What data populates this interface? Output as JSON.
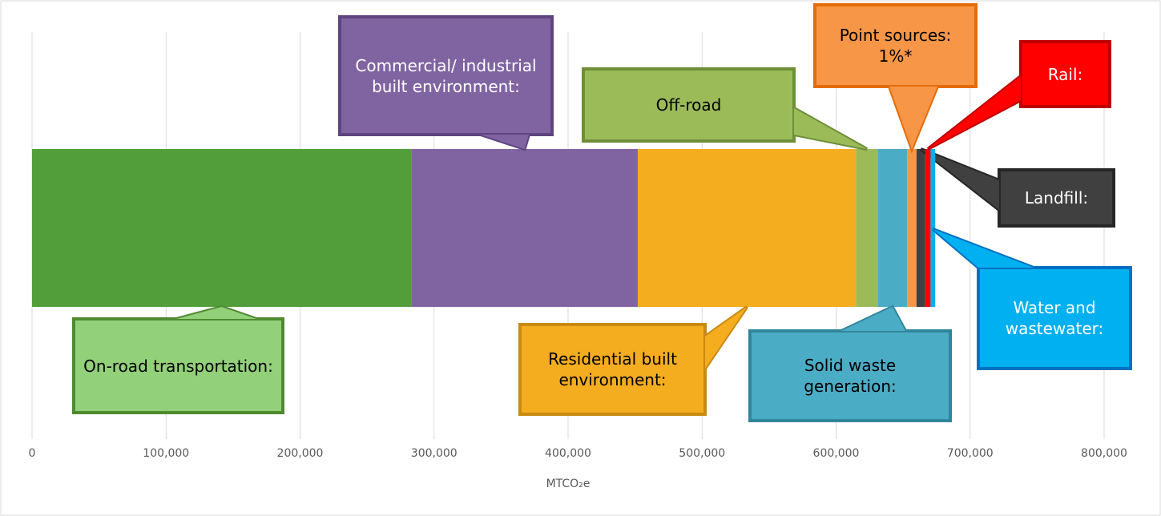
{
  "chart_data": {
    "type": "stacked-bar",
    "orientation": "horizontal",
    "x_label": "MTCO₂e",
    "categories": [
      null
    ],
    "series": [
      {
        "name": "On-road transportation:",
        "color": "#529e3a",
        "values": [
          283000
        ]
      },
      {
        "name": "Commercial/ industrial built environment:",
        "color": "#8064a2",
        "values": [
          169000
        ]
      },
      {
        "name": "Residential built environment:",
        "color": "#f5ad20",
        "values": [
          163000
        ]
      },
      {
        "name": "Off-road",
        "color": "#9bbb59",
        "values": [
          16000
        ]
      },
      {
        "name": "Solid waste generation:",
        "color": "#4bacc6",
        "values": [
          22000
        ]
      },
      {
        "name": "Point sources: 1%*",
        "color": "#f79646",
        "values": [
          7000
        ]
      },
      {
        "name": "Landfill:",
        "color": "#404040",
        "values": [
          6500
        ]
      },
      {
        "name": "Rail:",
        "color": "#ff0000",
        "values": [
          4000
        ]
      },
      {
        "name": "Water and wastewater:",
        "color": "#00b0f0",
        "values": [
          3500
        ]
      }
    ],
    "xlim": [
      0,
      800000
    ],
    "xticks": [
      0,
      {
        "value": 100000,
        "label": "100,000"
      },
      {
        "value": 200000,
        "label": "200,000"
      },
      {
        "value": 300000,
        "label": "300,000"
      },
      {
        "value": 400000,
        "label": "400,000"
      },
      {
        "value": 500000,
        "label": "500,000"
      },
      {
        "value": 600000,
        "label": "600,000"
      },
      {
        "value": 700000,
        "label": "700,000"
      },
      {
        "value": 800000,
        "label": "800,000"
      }
    ],
    "grid": true
  }
}
